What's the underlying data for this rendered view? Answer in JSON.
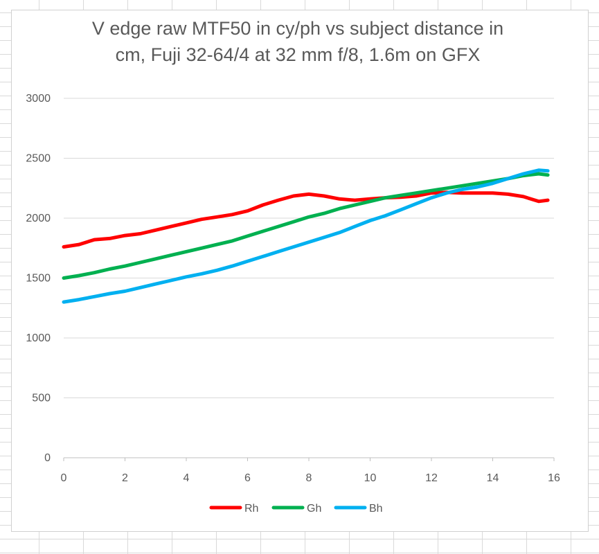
{
  "chart_data": {
    "type": "line",
    "title_line1": "V edge raw MTF50 in cy/ph vs subject distance in",
    "title_line2": "cm, Fuji 32-64/4 at 32 mm f/8, 1.6m on GFX",
    "xlabel": "",
    "ylabel": "",
    "xlim": [
      0,
      16
    ],
    "ylim": [
      0,
      3000
    ],
    "x_ticks": [
      "0",
      "2",
      "4",
      "6",
      "8",
      "10",
      "12",
      "14",
      "16"
    ],
    "y_ticks": [
      "0",
      "500",
      "1000",
      "1500",
      "2000",
      "2500",
      "3000"
    ],
    "grid": "horizontal",
    "legend_position": "bottom",
    "x": [
      0,
      0.5,
      1,
      1.5,
      2,
      2.5,
      3,
      3.5,
      4,
      4.5,
      5,
      5.5,
      6,
      6.5,
      7,
      7.5,
      8,
      8.5,
      9,
      9.5,
      10,
      10.5,
      11,
      11.5,
      12,
      12.5,
      13,
      13.5,
      14,
      14.5,
      15,
      15.5,
      15.8
    ],
    "series": [
      {
        "name": "Rh",
        "color": "#ff0000",
        "values": [
          1760,
          1780,
          1820,
          1830,
          1855,
          1870,
          1900,
          1930,
          1960,
          1990,
          2010,
          2030,
          2060,
          2110,
          2150,
          2185,
          2200,
          2185,
          2160,
          2150,
          2160,
          2170,
          2175,
          2185,
          2210,
          2215,
          2210,
          2210,
          2210,
          2200,
          2180,
          2140,
          2150
        ]
      },
      {
        "name": "Gh",
        "color": "#00b050",
        "values": [
          1500,
          1520,
          1545,
          1575,
          1600,
          1630,
          1660,
          1690,
          1720,
          1750,
          1780,
          1810,
          1850,
          1890,
          1930,
          1970,
          2010,
          2040,
          2080,
          2110,
          2140,
          2170,
          2190,
          2210,
          2230,
          2250,
          2270,
          2290,
          2310,
          2330,
          2355,
          2370,
          2360
        ]
      },
      {
        "name": "Bh",
        "color": "#00b0f0",
        "values": [
          1300,
          1320,
          1345,
          1370,
          1390,
          1420,
          1450,
          1480,
          1510,
          1535,
          1565,
          1600,
          1640,
          1680,
          1720,
          1760,
          1800,
          1840,
          1880,
          1930,
          1980,
          2020,
          2070,
          2120,
          2170,
          2210,
          2240,
          2260,
          2290,
          2330,
          2370,
          2400,
          2395
        ]
      }
    ]
  }
}
